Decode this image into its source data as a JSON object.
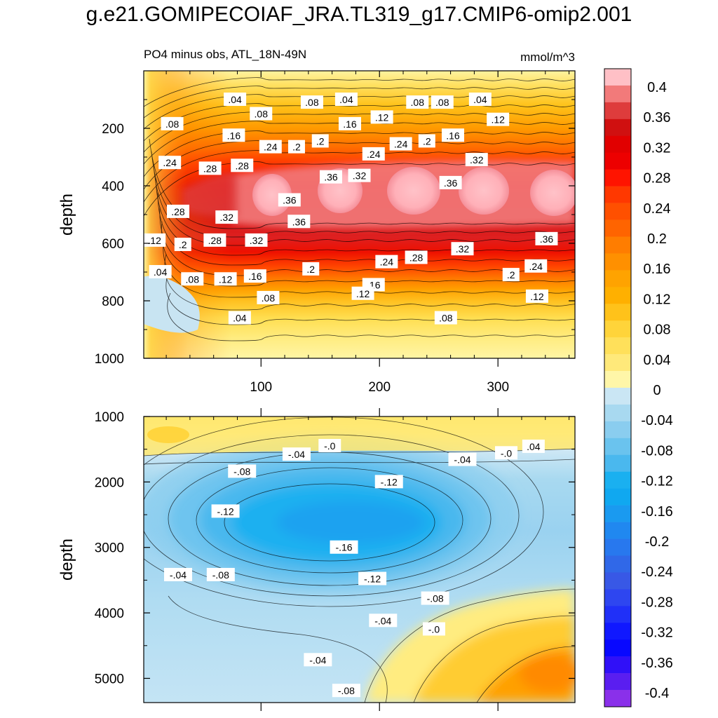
{
  "title": "g.e21.GOMIPECOIAF_JRA.TL319_g17.CMIP6-omip2.001",
  "chart_data": [
    {
      "type": "heatmap",
      "panel": "top",
      "subtitle": "PO4 minus obs, ATL_18N-49N",
      "units": "mmol/m^3",
      "xlabel": "",
      "ylabel": "depth",
      "xlim": [
        1,
        365
      ],
      "ylim": [
        1000,
        0
      ],
      "xticks": [
        100,
        200,
        300
      ],
      "yticks": [
        200,
        400,
        600,
        800,
        1000
      ],
      "contour_labels": [
        {
          "text": ".04",
          "x": 78,
          "y": 100
        },
        {
          "text": ".08",
          "x": 100,
          "y": 150
        },
        {
          "text": ".08",
          "x": 143,
          "y": 110
        },
        {
          "text": ".04",
          "x": 172,
          "y": 100
        },
        {
          "text": ".08",
          "x": 232,
          "y": 110
        },
        {
          "text": ".08",
          "x": 253,
          "y": 110
        },
        {
          "text": ".04",
          "x": 285,
          "y": 100
        },
        {
          "text": ".12",
          "x": 202,
          "y": 162
        },
        {
          "text": ".16",
          "x": 175,
          "y": 185
        },
        {
          "text": ".12",
          "x": 300,
          "y": 170
        },
        {
          "text": ".08",
          "x": 25,
          "y": 185
        },
        {
          "text": ".16",
          "x": 77,
          "y": 225
        },
        {
          "text": ".24",
          "x": 108,
          "y": 265
        },
        {
          "text": ".2",
          "x": 130,
          "y": 265
        },
        {
          "text": ".2",
          "x": 150,
          "y": 245
        },
        {
          "text": ".24",
          "x": 195,
          "y": 290
        },
        {
          "text": ".24",
          "x": 218,
          "y": 255
        },
        {
          "text": ".2",
          "x": 240,
          "y": 245
        },
        {
          "text": ".16",
          "x": 262,
          "y": 225
        },
        {
          "text": ".32",
          "x": 282,
          "y": 310
        },
        {
          "text": ".24",
          "x": 23,
          "y": 320
        },
        {
          "text": ".28",
          "x": 57,
          "y": 340
        },
        {
          "text": ".28",
          "x": 84,
          "y": 330
        },
        {
          "text": ".36",
          "x": 159,
          "y": 370
        },
        {
          "text": ".32",
          "x": 183,
          "y": 365
        },
        {
          "text": ".36",
          "x": 260,
          "y": 390
        },
        {
          "text": ".36",
          "x": 124,
          "y": 450
        },
        {
          "text": ".28",
          "x": 30,
          "y": 490
        },
        {
          "text": ".32",
          "x": 71,
          "y": 510
        },
        {
          "text": ".36",
          "x": 132,
          "y": 525
        },
        {
          "text": ".12",
          "x": 10,
          "y": 590
        },
        {
          "text": ".2",
          "x": 34,
          "y": 605
        },
        {
          "text": ".28",
          "x": 61,
          "y": 590
        },
        {
          "text": ".32",
          "x": 96,
          "y": 590
        },
        {
          "text": ".36",
          "x": 341,
          "y": 585
        },
        {
          "text": ".32",
          "x": 270,
          "y": 620
        },
        {
          "text": ".28",
          "x": 231,
          "y": 650
        },
        {
          "text": ".24",
          "x": 206,
          "y": 665
        },
        {
          "text": ".24",
          "x": 332,
          "y": 680
        },
        {
          "text": ".2",
          "x": 142,
          "y": 690
        },
        {
          "text": ".2",
          "x": 311,
          "y": 710
        },
        {
          "text": ".04",
          "x": 15,
          "y": 700
        },
        {
          "text": ".08",
          "x": 42,
          "y": 725
        },
        {
          "text": ".12",
          "x": 70,
          "y": 725
        },
        {
          "text": ".16",
          "x": 95,
          "y": 715
        },
        {
          "text": ".16",
          "x": 195,
          "y": 745
        },
        {
          "text": ".12",
          "x": 186,
          "y": 775
        },
        {
          "text": ".08",
          "x": 106,
          "y": 790
        },
        {
          "text": ".12",
          "x": 333,
          "y": 785
        },
        {
          "text": ".04",
          "x": 82,
          "y": 860
        },
        {
          "text": ".08",
          "x": 256,
          "y": 860
        }
      ]
    },
    {
      "type": "heatmap",
      "panel": "bottom",
      "xlabel": "",
      "ylabel": "depth",
      "xlim": [
        1,
        365
      ],
      "ylim": [
        5370,
        1000
      ],
      "yticks": [
        1000,
        2000,
        3000,
        4000,
        5000
      ],
      "contour_labels": [
        {
          "text": "-.0",
          "x": 158,
          "y": 1450
        },
        {
          "text": "-.04",
          "x": 130,
          "y": 1580
        },
        {
          "text": "-.04",
          "x": 270,
          "y": 1660
        },
        {
          "text": "-.0",
          "x": 307,
          "y": 1560
        },
        {
          "text": ".04",
          "x": 330,
          "y": 1460
        },
        {
          "text": "-.08",
          "x": 84,
          "y": 1840
        },
        {
          "text": "-.12",
          "x": 208,
          "y": 2000
        },
        {
          "text": "-.12",
          "x": 70,
          "y": 2450
        },
        {
          "text": "-.16",
          "x": 170,
          "y": 3000
        },
        {
          "text": "-.04",
          "x": 30,
          "y": 3420
        },
        {
          "text": "-.08",
          "x": 66,
          "y": 3420
        },
        {
          "text": "-.12",
          "x": 194,
          "y": 3480
        },
        {
          "text": "-.08",
          "x": 247,
          "y": 3780
        },
        {
          "text": "-.04",
          "x": 203,
          "y": 4120
        },
        {
          "text": "-.0",
          "x": 246,
          "y": 4250
        },
        {
          "text": "-.04",
          "x": 148,
          "y": 4720
        },
        {
          "text": "-.08",
          "x": 172,
          "y": 5190
        }
      ]
    }
  ],
  "colorbar": {
    "labels": [
      "0.4",
      "0.36",
      "0.32",
      "0.28",
      "0.24",
      "0.2",
      "0.16",
      "0.12",
      "0.08",
      "0.04",
      "0",
      "-0.04",
      "-0.08",
      "-0.12",
      "-0.16",
      "-0.2",
      "-0.24",
      "-0.28",
      "-0.32",
      "-0.36",
      "-0.4"
    ],
    "colors": [
      "#ffc0c6",
      "#f27a7a",
      "#de3c3c",
      "#d01010",
      "#e10000",
      "#ed0000",
      "#ff1400",
      "#ff3800",
      "#ff5000",
      "#ff6400",
      "#ff7d00",
      "#ff9000",
      "#ffa300",
      "#ffb000",
      "#ffc21a",
      "#ffd43a",
      "#ffe05a",
      "#ffe97a",
      "#fff6a8",
      "#cae6f4",
      "#a8d9f0",
      "#8acdef",
      "#6ac3ee",
      "#4ab8ee",
      "#1ab0f0",
      "#10a8f0",
      "#1a9af0",
      "#2088f0",
      "#2878ee",
      "#3068e8",
      "#3858e6",
      "#2e46f0",
      "#2030f8",
      "#1018ff",
      "#0808ff",
      "#3010f8",
      "#5a1ef0",
      "#8a30ea"
    ]
  }
}
